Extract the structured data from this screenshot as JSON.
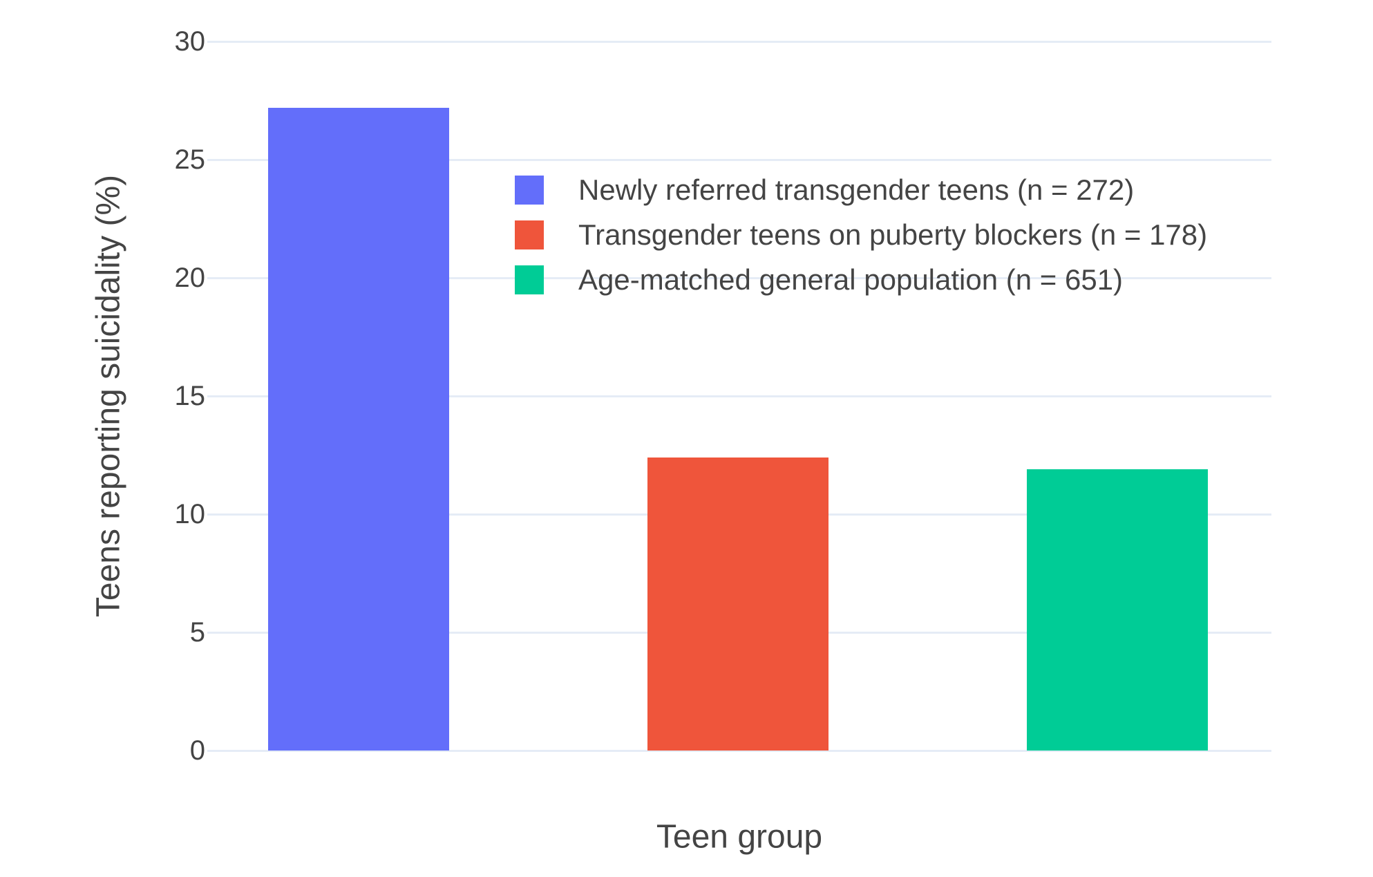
{
  "chart_data": {
    "type": "bar",
    "title": "",
    "xlabel": "Teen group",
    "ylabel": "Teens reporting suicidality (%)",
    "categories": [
      "Newly referred transgender teens (n = 272)",
      "Transgender teens on puberty blockers (n = 178)",
      "Age-matched general population (n = 651)"
    ],
    "values": [
      27.2,
      12.4,
      11.9
    ],
    "colors": [
      "#636EFA",
      "#EF553B",
      "#00CC96"
    ],
    "legend_entries": [
      "Newly referred transgender teens (n = 272)",
      "Transgender teens on puberty blockers (n = 178)",
      "Age-matched general population (n = 651)"
    ],
    "legend_position": "inside-top-center",
    "ylim": [
      0,
      30
    ],
    "yticks": [
      0,
      5,
      10,
      15,
      20,
      25,
      30
    ],
    "ytick_labels": [
      "0",
      "5",
      "10",
      "15",
      "20",
      "25",
      "30"
    ],
    "grid": true,
    "gridline_color": "#E5ECF6",
    "background_color": "#FFFFFF",
    "text_color": "#444444"
  }
}
